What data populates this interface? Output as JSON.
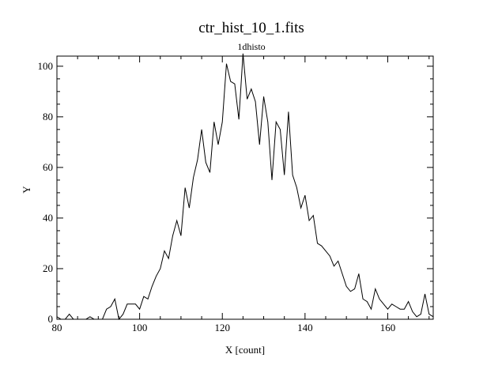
{
  "chart_data": {
    "type": "line",
    "title": "ctr_hist_10_1.fits",
    "subtitle": "1dhisto",
    "xlabel": "X [count]",
    "ylabel": "Y",
    "xlim": [
      80,
      171
    ],
    "ylim": [
      0,
      104
    ],
    "xticks": [
      80,
      100,
      120,
      140,
      160
    ],
    "yticks": [
      0,
      20,
      40,
      60,
      80,
      100
    ],
    "grid": false,
    "line_color": "#000000",
    "series": [
      {
        "x": [
          80,
          81,
          82,
          83,
          84,
          85,
          86,
          87,
          88,
          89,
          90,
          91,
          92,
          93,
          94,
          95,
          96,
          97,
          98,
          99,
          100,
          101,
          102,
          103,
          104,
          105,
          106,
          107,
          108,
          109,
          110,
          111,
          112,
          113,
          114,
          115,
          116,
          117,
          118,
          119,
          120,
          121,
          122,
          123,
          124,
          125,
          126,
          127,
          128,
          129,
          130,
          131,
          132,
          133,
          134,
          135,
          136,
          137,
          138,
          139,
          140,
          141,
          142,
          143,
          144,
          145,
          146,
          147,
          148,
          149,
          150,
          151,
          152,
          153,
          154,
          155,
          156,
          157,
          158,
          159,
          160,
          161,
          162,
          163,
          164,
          165,
          166,
          167,
          168,
          169,
          170,
          171
        ],
        "y": [
          1,
          0,
          0,
          2,
          0,
          0,
          0,
          0,
          1,
          0,
          0,
          0,
          4,
          5,
          8,
          0,
          2,
          6,
          6,
          6,
          4,
          9,
          8,
          13,
          17,
          20,
          27,
          24,
          33,
          39,
          33,
          52,
          44,
          56,
          63,
          75,
          62,
          58,
          78,
          69,
          78,
          101,
          94,
          93,
          79,
          105,
          87,
          91,
          86,
          69,
          88,
          78,
          55,
          78,
          75,
          57,
          82,
          57,
          52,
          44,
          49,
          39,
          41,
          30,
          29,
          27,
          25,
          21,
          23,
          18,
          13,
          11,
          12,
          18,
          8,
          7,
          4,
          12,
          8,
          6,
          4,
          6,
          5,
          4,
          4,
          7,
          3,
          1,
          2,
          10,
          2,
          1
        ]
      }
    ]
  }
}
